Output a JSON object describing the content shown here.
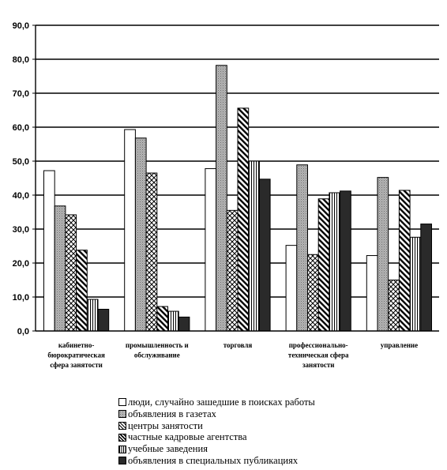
{
  "chart_data": {
    "type": "bar",
    "categories": [
      [
        "кабинетно-",
        "бюрократическая",
        "сфера занятости"
      ],
      [
        "промышленность и",
        "обслуживание"
      ],
      [
        "торговля"
      ],
      [
        "профессионально-",
        "техническая сфера",
        "занятости"
      ],
      [
        "управление"
      ]
    ],
    "series": [
      {
        "name": "люди, случайно зашедшие в поисках работы",
        "values": [
          47.2,
          59.3,
          47.8,
          25.2,
          22.2
        ]
      },
      {
        "name": "объявления в газетах",
        "values": [
          36.8,
          56.8,
          78.2,
          48.9,
          45.2
        ]
      },
      {
        "name": "центры занятости",
        "values": [
          34.2,
          46.5,
          35.5,
          22.5,
          15.0
        ]
      },
      {
        "name": "частные кадровые агентства",
        "values": [
          23.8,
          7.2,
          65.6,
          38.9,
          41.4
        ]
      },
      {
        "name": "учебные заведения",
        "values": [
          9.3,
          5.8,
          50.0,
          40.7,
          27.6
        ]
      },
      {
        "name": "объявления в специальных публикациях",
        "values": [
          6.4,
          4.1,
          44.7,
          41.2,
          31.5
        ]
      }
    ],
    "ylim": [
      0,
      90
    ],
    "yticks": [
      "0,0",
      "10,0",
      "20,0",
      "30,0",
      "40,0",
      "50,0",
      "60,0",
      "70,0",
      "80,0",
      "90,0"
    ],
    "grid": true,
    "legend_position": "bottom"
  },
  "styles": {
    "patterns": [
      "white",
      "dots",
      "crosshatch",
      "diagonal",
      "vertical",
      "black"
    ],
    "colors": {
      "dots_fill": "#b4b4b4",
      "dots_mark": "#6e6e6e",
      "black": "#2a2a2a",
      "grid": "#000000"
    }
  }
}
